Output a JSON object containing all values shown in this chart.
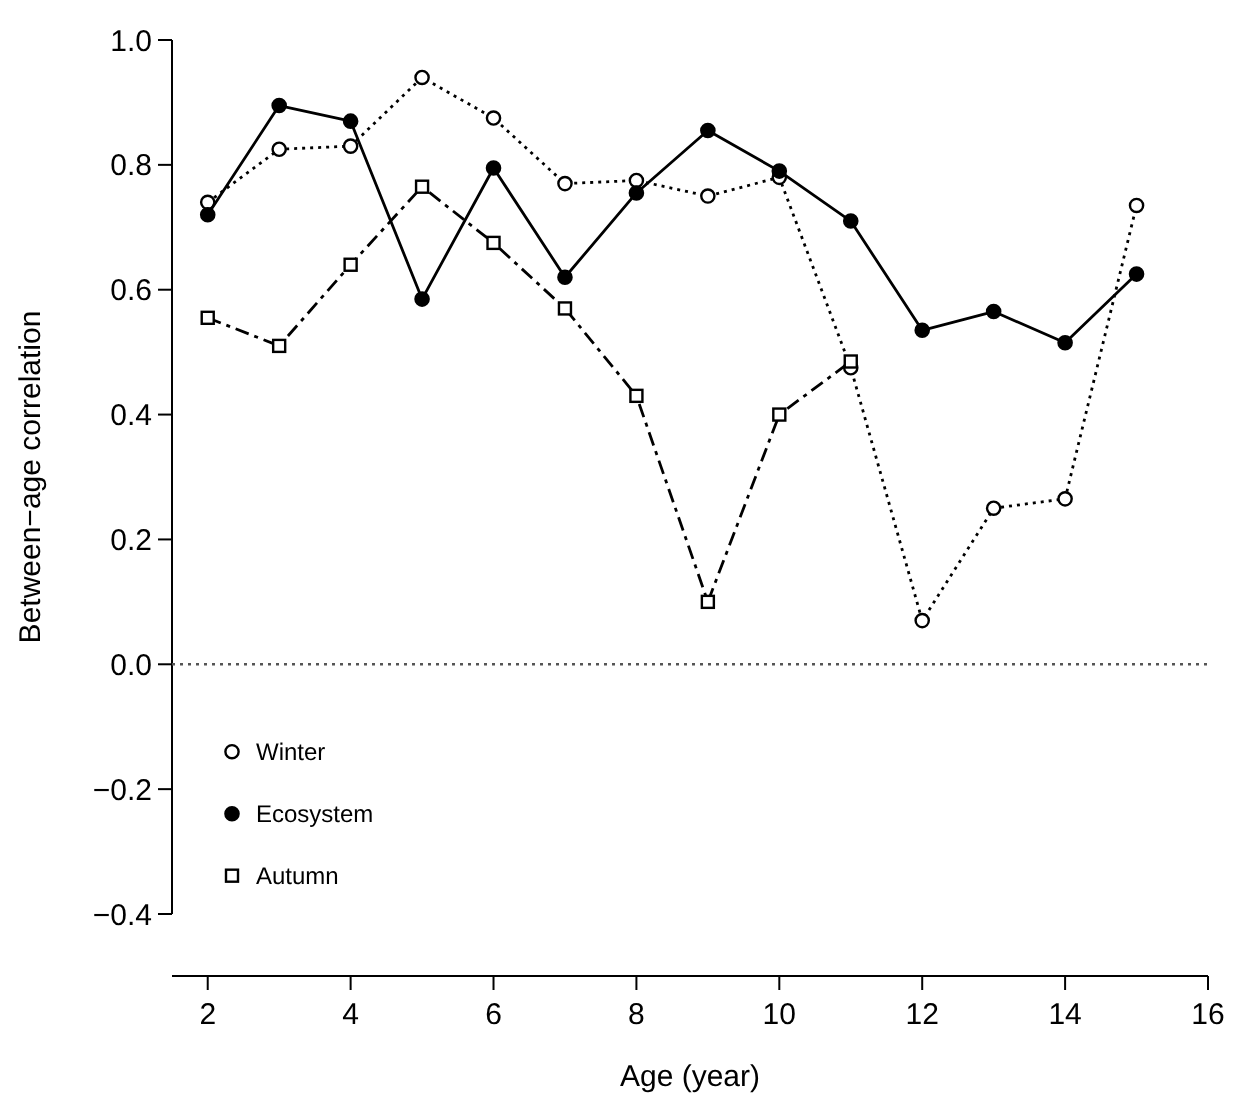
{
  "chart_data": {
    "type": "line",
    "xlabel": "Age (year)",
    "ylabel": "Between−age correlation",
    "x": [
      2,
      3,
      4,
      5,
      6,
      7,
      8,
      9,
      10,
      11,
      12,
      13,
      14,
      15
    ],
    "series": [
      {
        "name": "Winter",
        "color": "#000000",
        "marker": "circle",
        "line_style": "dotted",
        "values": [
          0.74,
          0.825,
          0.83,
          0.94,
          0.875,
          0.77,
          0.775,
          0.75,
          0.78,
          0.475,
          0.07,
          0.25,
          0.265,
          0.735
        ]
      },
      {
        "name": "Ecosystem",
        "color": "#000000",
        "marker": "circle",
        "line_style": "solid",
        "values": [
          0.72,
          0.895,
          0.87,
          0.585,
          0.795,
          0.62,
          0.755,
          0.855,
          0.79,
          0.71,
          0.535,
          0.565,
          0.515,
          0.625
        ]
      },
      {
        "name": "Autumn",
        "color": "#000000",
        "marker": "square",
        "line_style": "dashed",
        "values": [
          0.555,
          0.51,
          0.64,
          0.765,
          0.675,
          0.57,
          0.43,
          0.1,
          0.4,
          0.485,
          null,
          null,
          null,
          null
        ]
      }
    ],
    "xlim": [
      1.5,
      16
    ],
    "xticks": [
      2,
      4,
      6,
      8,
      10,
      12,
      14,
      16
    ],
    "ylim": [
      -0.4,
      1.0
    ],
    "yticks": [
      {
        "value": -0.4,
        "label": "−0.4"
      },
      {
        "value": -0.2,
        "label": "−0.2"
      },
      {
        "value": 0,
        "label": "0.0"
      },
      {
        "value": 0.2,
        "label": "0.2"
      },
      {
        "value": 0.4,
        "label": "0.4"
      },
      {
        "value": 0.6,
        "label": "0.6"
      },
      {
        "value": 0.8,
        "label": "0.8"
      },
      {
        "value": 1.0,
        "label": "1.0"
      }
    ],
    "ref_lines": [
      {
        "axis": "y",
        "value": 0,
        "line_style": "dotted",
        "color": "#555555"
      }
    ],
    "grid": false,
    "legend": "bottom left"
  }
}
